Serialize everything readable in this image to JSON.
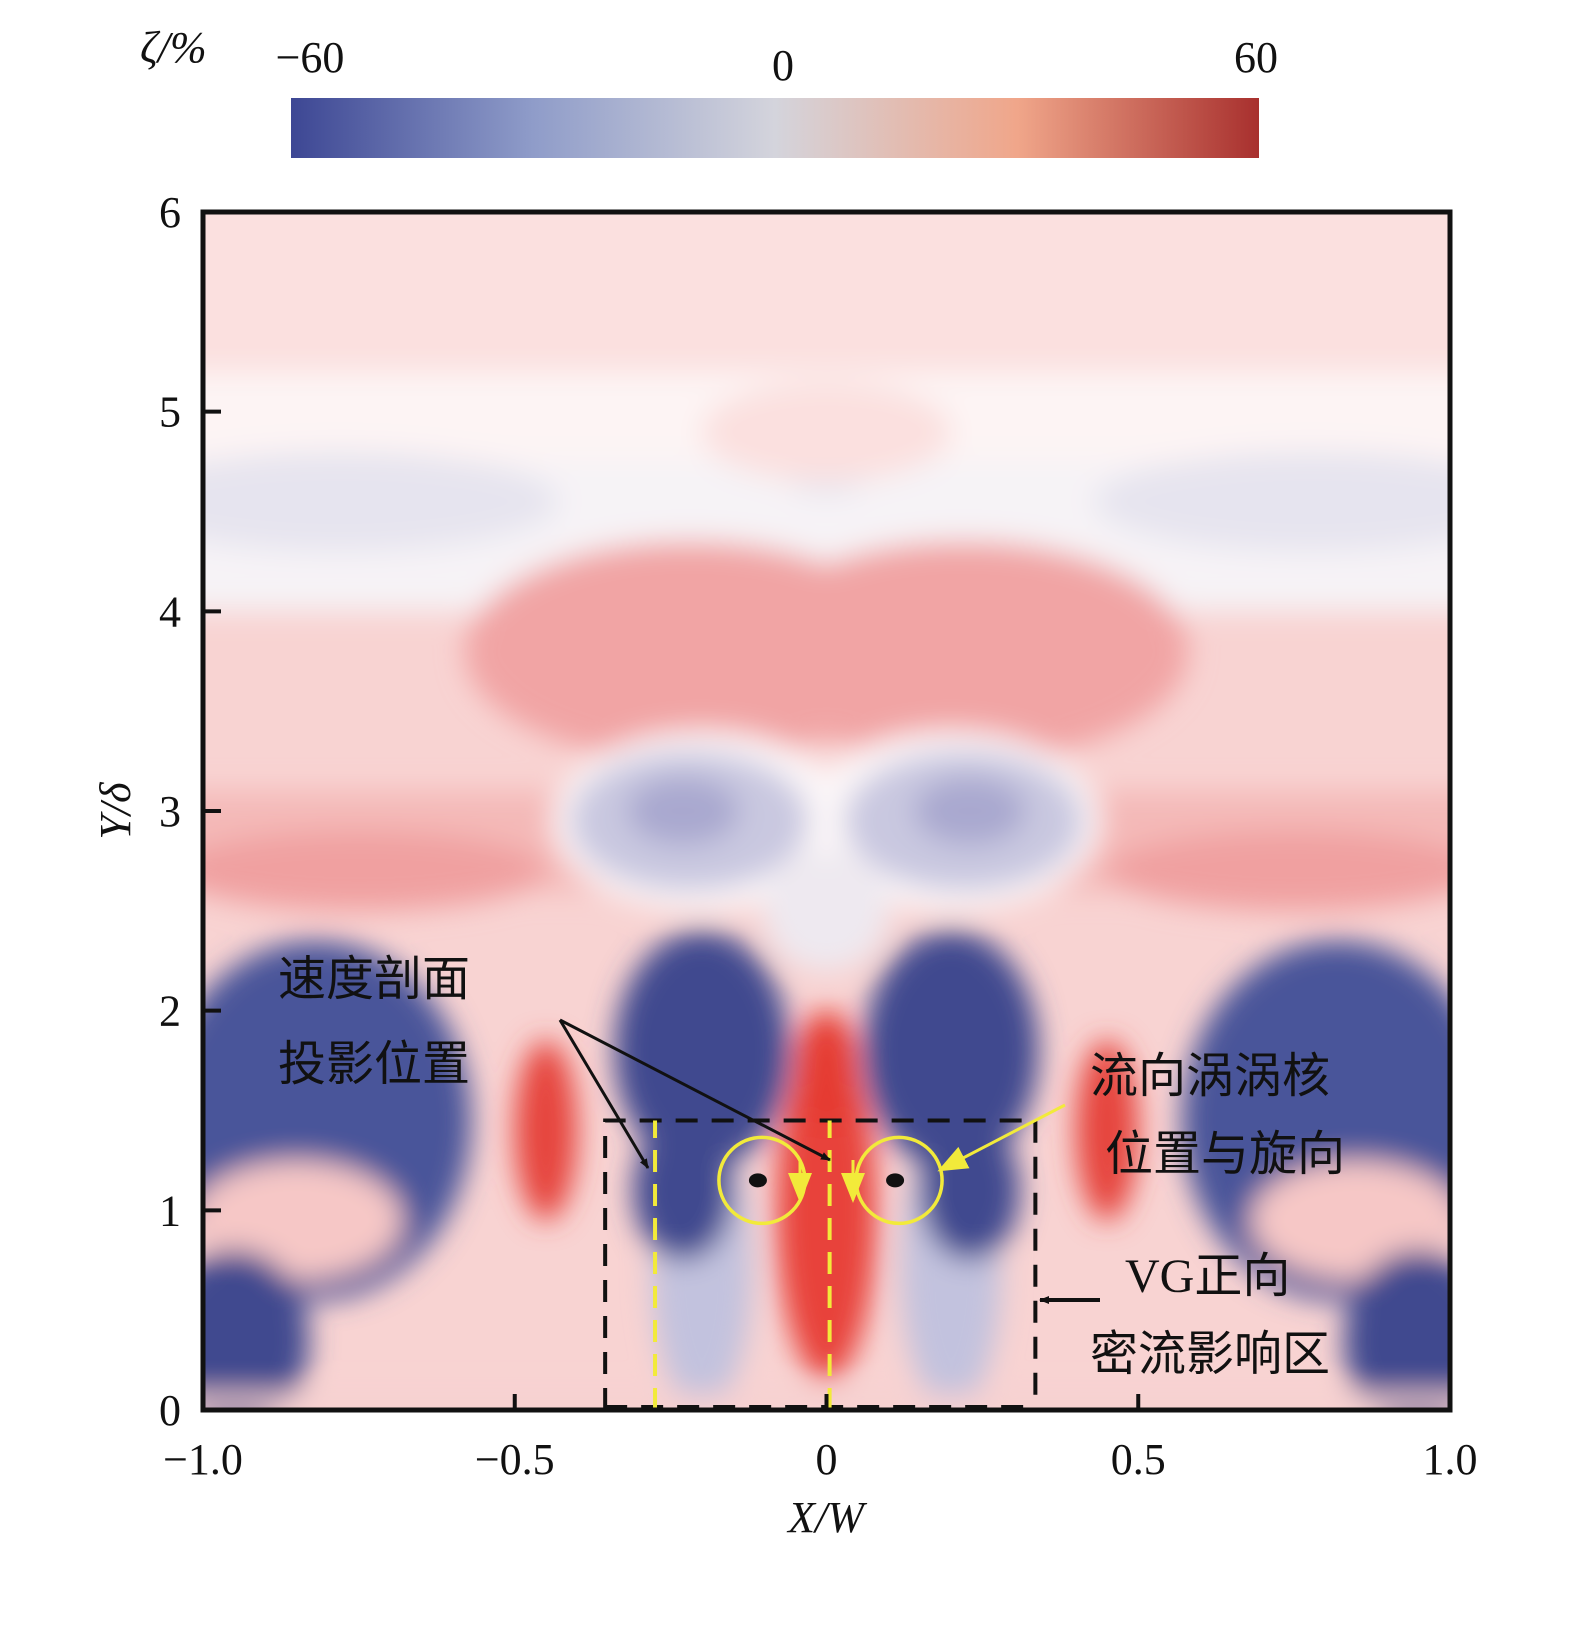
{
  "chart_data": {
    "type": "heatmap",
    "title": "",
    "xlabel": "X/W",
    "ylabel": "Y/δ",
    "xlim": [
      -1.0,
      1.0
    ],
    "ylim": [
      0,
      6
    ],
    "x_ticks": [
      "−1.0",
      "−0.5",
      "0",
      "0.5",
      "1.0"
    ],
    "x_tick_values": [
      -1.0,
      -0.5,
      0,
      0.5,
      1.0
    ],
    "y_ticks": [
      "0",
      "1",
      "2",
      "3",
      "4",
      "5",
      "6"
    ],
    "y_tick_values": [
      0,
      1,
      2,
      3,
      4,
      5,
      6
    ],
    "colorbar": {
      "label": "ζ/%",
      "range": [
        -60,
        60
      ],
      "tick_labels": [
        "−60",
        "0",
        "60"
      ],
      "tick_values": [
        -60,
        0,
        60
      ],
      "colors": [
        "#3d4794",
        "#8f9cc9",
        "#d4d4dc",
        "#f0a68a",
        "#a8302e"
      ]
    },
    "features": {
      "vortex_cores": [
        {
          "x": -0.11,
          "y": 1.15,
          "rotation": "clockwise"
        },
        {
          "x": 0.11,
          "y": 1.15,
          "rotation": "counterclockwise"
        }
      ],
      "vg_region_box": {
        "x": [
          -0.355,
          0.335
        ],
        "y": [
          0,
          1.45
        ]
      },
      "profile_lines_x": [
        -0.275,
        0.005
      ]
    },
    "annotations": [
      {
        "lines": [
          "速度剖面",
          "投影位置"
        ]
      },
      {
        "lines": [
          "流向涡涡核",
          "位置与旋向"
        ]
      },
      {
        "lines": [
          "VG正向",
          "密流影响区"
        ]
      }
    ]
  }
}
